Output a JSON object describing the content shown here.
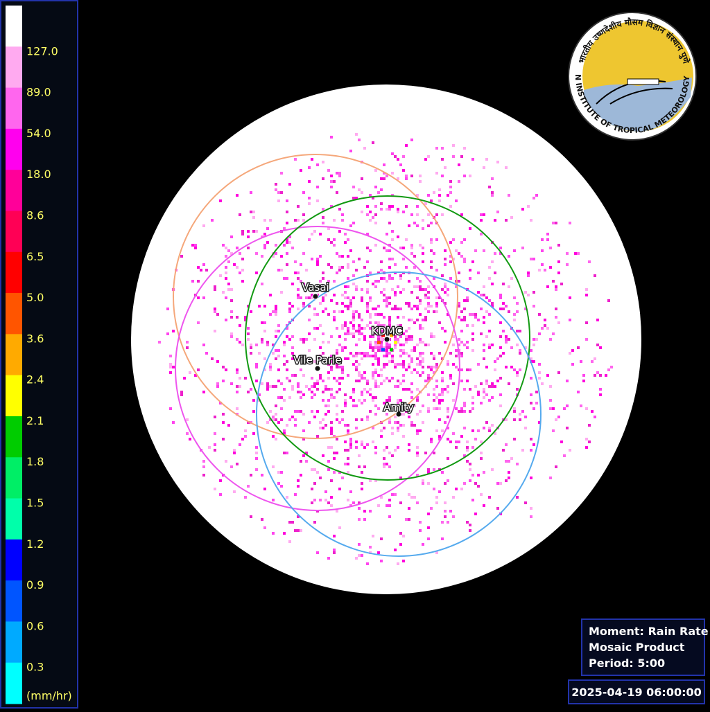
{
  "legend": {
    "labels": [
      "127.0",
      "89.0",
      "54.0",
      "18.0",
      "8.6",
      "6.5",
      "5.0",
      "3.6",
      "2.4",
      "2.1",
      "1.8",
      "1.5",
      "1.2",
      "0.9",
      "0.6",
      "0.3"
    ],
    "unit": "(mm/hr)"
  },
  "stations": [
    {
      "label": "Vasai"
    },
    {
      "label": "KDMC"
    },
    {
      "label": "Vile Parle"
    },
    {
      "label": "Amity"
    }
  ],
  "info": {
    "lines": [
      "Moment: Rain Rate",
      "Mosaic Product",
      "Period: 5:00"
    ]
  },
  "timestamp": "2025-04-19 06:00:00",
  "logo": {
    "english": "INDIAN INSTITUTE OF TROPICAL METEOROLOGY PUNE",
    "hindi": "भारतीय उष्णदेशीय मौसम विज्ञान संस्थान पुणे"
  }
}
